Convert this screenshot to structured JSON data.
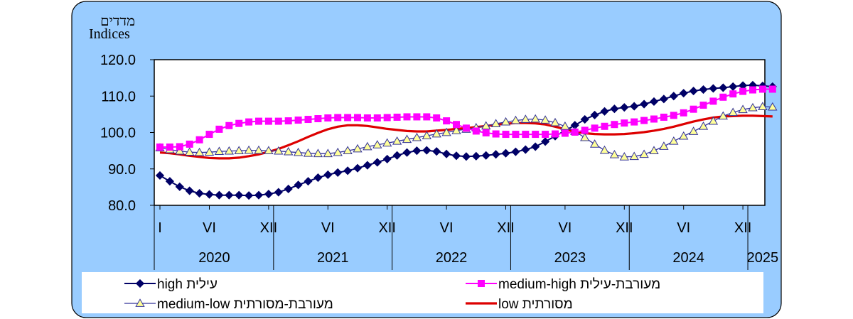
{
  "colors": {
    "frame_bg": "#99CCFF",
    "high": "#000066",
    "medium_high": "#FF00FF",
    "medium_low": "#FFFF99",
    "medium_low_stroke": "#333399",
    "low": "#DD0000"
  },
  "chart_data": {
    "type": "line",
    "y_header_he": "מדדים",
    "y_header_en": "Indices",
    "ylim": [
      80.0,
      120.0
    ],
    "y_ticks": [
      "80.0",
      "90.0",
      "100.0",
      "110.0",
      "120.0"
    ],
    "month_tick_labels": [
      "I",
      "VI",
      "XII",
      "VI",
      "XII",
      "VI",
      "XII",
      "VI",
      "XII",
      "VI",
      "XII"
    ],
    "year_labels": [
      "2020",
      "2021",
      "2022",
      "2023",
      "2024",
      "2025"
    ],
    "x_start": "2020-01",
    "series": [
      {
        "key": "high",
        "name": "high עילית",
        "marker": "diamond",
        "values": [
          88.2,
          86.6,
          85.1,
          84.0,
          83.3,
          83.0,
          82.8,
          82.8,
          82.8,
          82.7,
          82.8,
          83.1,
          83.6,
          84.5,
          85.6,
          86.6,
          87.6,
          88.4,
          89.0,
          89.5,
          90.2,
          91.0,
          91.8,
          92.7,
          93.7,
          94.5,
          95.0,
          95.1,
          94.8,
          94.1,
          93.6,
          93.4,
          93.5,
          93.7,
          94.0,
          94.3,
          94.7,
          95.3,
          96.1,
          97.5,
          99.0,
          100.5,
          102.0,
          103.6,
          104.8,
          105.8,
          106.5,
          106.9,
          107.2,
          107.8,
          108.5,
          109.2,
          110.0,
          110.8,
          111.4,
          111.8,
          112.1,
          112.3,
          112.6,
          112.9,
          113.0,
          112.8,
          112.6
        ]
      },
      {
        "key": "medium_high",
        "name": "medium-high מעורבת-עילית",
        "marker": "square",
        "values": [
          96.0,
          96.0,
          96.1,
          96.8,
          98.0,
          99.5,
          100.9,
          101.9,
          102.5,
          102.9,
          103.1,
          103.1,
          103.1,
          103.2,
          103.4,
          103.6,
          103.8,
          104.0,
          104.1,
          104.1,
          104.1,
          104.0,
          104.0,
          104.1,
          104.2,
          104.3,
          104.3,
          104.3,
          104.0,
          103.2,
          102.2,
          101.2,
          100.4,
          99.9,
          99.6,
          99.5,
          99.5,
          99.5,
          99.5,
          99.5,
          99.6,
          99.8,
          100.1,
          100.6,
          101.2,
          101.7,
          102.2,
          102.6,
          102.9,
          103.3,
          103.7,
          104.2,
          104.7,
          105.4,
          106.4,
          107.5,
          108.6,
          109.7,
          110.6,
          111.3,
          111.7,
          111.9,
          111.9
        ]
      },
      {
        "key": "medium_low",
        "name": "medium-low מעורבת-מסורתית",
        "marker": "triangle",
        "values": [
          95.8,
          95.3,
          94.9,
          94.6,
          94.5,
          94.6,
          94.8,
          94.9,
          95.0,
          95.1,
          95.1,
          95.0,
          94.9,
          94.7,
          94.5,
          94.3,
          94.2,
          94.2,
          94.5,
          95.0,
          95.5,
          96.1,
          96.6,
          97.1,
          97.6,
          98.1,
          98.6,
          99.1,
          99.6,
          100.0,
          100.5,
          100.9,
          101.3,
          101.8,
          102.4,
          102.9,
          103.3,
          103.6,
          103.7,
          103.4,
          102.7,
          101.7,
          100.3,
          98.6,
          96.8,
          95.1,
          93.9,
          93.3,
          93.4,
          94.0,
          95.0,
          96.2,
          97.6,
          99.0,
          100.3,
          101.7,
          103.1,
          104.5,
          105.5,
          106.3,
          106.8,
          107.1,
          107.0
        ]
      },
      {
        "key": "low",
        "name": "low מסורתית",
        "marker": "none",
        "values": [
          94.5,
          94.3,
          94.0,
          93.6,
          93.3,
          93.0,
          92.9,
          92.9,
          93.1,
          93.5,
          94.0,
          94.7,
          95.5,
          96.5,
          97.6,
          98.8,
          99.9,
          100.9,
          101.6,
          102.0,
          102.0,
          101.8,
          101.4,
          101.0,
          100.7,
          100.4,
          100.3,
          100.3,
          100.5,
          100.7,
          101.0,
          101.2,
          101.5,
          101.8,
          102.1,
          102.4,
          102.6,
          102.6,
          102.5,
          102.2,
          101.6,
          100.9,
          100.2,
          99.8,
          99.6,
          99.5,
          99.5,
          99.6,
          99.8,
          100.1,
          100.5,
          101.0,
          101.6,
          102.3,
          103.0,
          103.6,
          104.1,
          104.4,
          104.5,
          104.6,
          104.6,
          104.5,
          104.4
        ]
      }
    ],
    "grid": false
  }
}
